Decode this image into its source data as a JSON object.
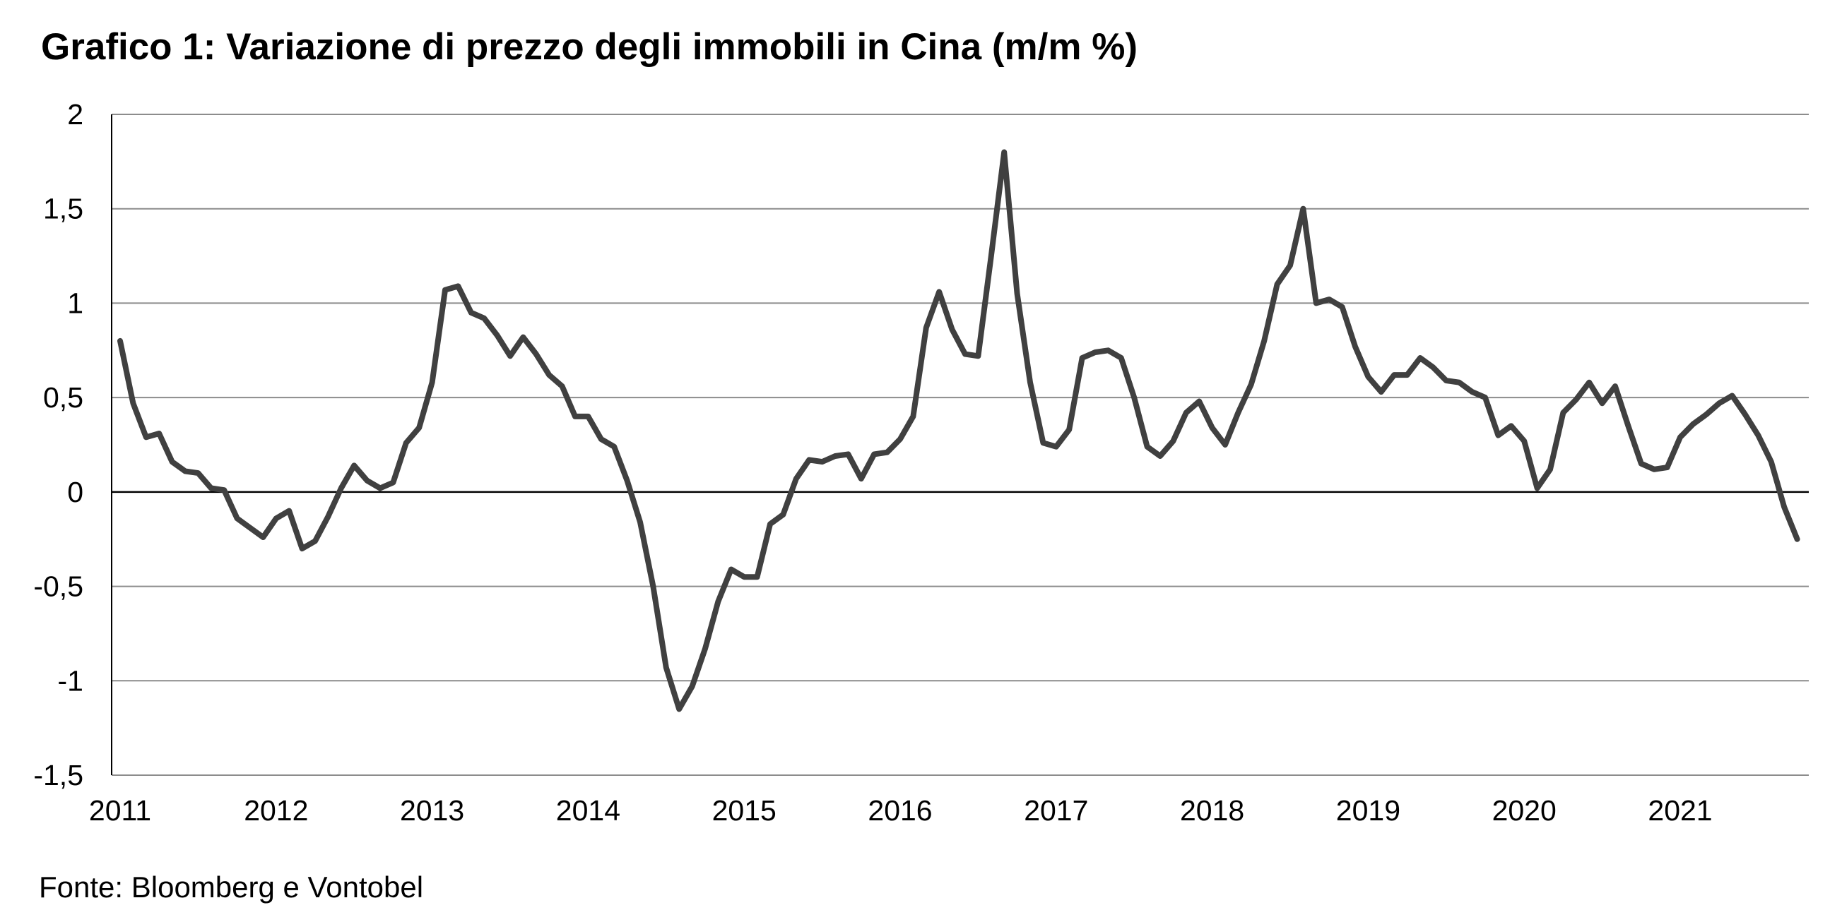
{
  "title": "Grafico 1: Variazione di prezzo degli immobili in Cina (m/m %)",
  "source": "Fonte: Bloomberg e Vontobel",
  "chart_data": {
    "type": "line",
    "title": "Grafico 1: Variazione di prezzo degli immobili in Cina (m/m %)",
    "xlabel": "",
    "ylabel": "",
    "x_start": "2011-01",
    "frequency": "monthly",
    "xlim": [
      "2011-01",
      "2021-10"
    ],
    "ylim": [
      -1.5,
      2
    ],
    "y_ticks": [
      -1.5,
      -1,
      -0.5,
      0,
      0.5,
      1,
      1.5,
      2
    ],
    "y_tick_labels": [
      "-1,5",
      "-1",
      "-0,5",
      "0",
      "0,5",
      "1",
      "1,5",
      "2"
    ],
    "x_tick_labels": [
      "2011",
      "2012",
      "2013",
      "2014",
      "2015",
      "2016",
      "2017",
      "2018",
      "2019",
      "2020",
      "2021"
    ],
    "grid": true,
    "line_color": "#404040",
    "series": [
      {
        "values": [
          0.8,
          0.47,
          0.29,
          0.31,
          0.16,
          0.11,
          0.1,
          0.02,
          0.01,
          -0.14,
          -0.19,
          -0.24,
          -0.14,
          -0.1,
          -0.3,
          -0.26,
          -0.13,
          0.02,
          0.14,
          0.06,
          0.02,
          0.05,
          0.26,
          0.34,
          0.58,
          1.07,
          1.09,
          0.95,
          0.92,
          0.83,
          0.72,
          0.82,
          0.73,
          0.62,
          0.56,
          0.4,
          0.4,
          0.28,
          0.24,
          0.06,
          -0.16,
          -0.5,
          -0.93,
          -1.15,
          -1.03,
          -0.83,
          -0.58,
          -0.41,
          -0.45,
          -0.45,
          -0.17,
          -0.12,
          0.07,
          0.17,
          0.16,
          0.19,
          0.2,
          0.07,
          0.2,
          0.21,
          0.28,
          0.4,
          0.87,
          1.06,
          0.86,
          0.73,
          0.72,
          1.25,
          1.8,
          1.05,
          0.58,
          0.26,
          0.24,
          0.33,
          0.71,
          0.74,
          0.75,
          0.71,
          0.5,
          0.24,
          0.19,
          0.27,
          0.42,
          0.48,
          0.34,
          0.25,
          0.42,
          0.57,
          0.8,
          1.1,
          1.2,
          1.5,
          1.0,
          1.02,
          0.98,
          0.77,
          0.61,
          0.53,
          0.62,
          0.62,
          0.71,
          0.66,
          0.59,
          0.58,
          0.53,
          0.5,
          0.3,
          0.35,
          0.27,
          0.02,
          0.12,
          0.42,
          0.49,
          0.58,
          0.47,
          0.56,
          0.35,
          0.15,
          0.12,
          0.13,
          0.29,
          0.36,
          0.41,
          0.47,
          0.51,
          0.41,
          0.3,
          0.16,
          -0.08,
          -0.25
        ]
      }
    ]
  }
}
